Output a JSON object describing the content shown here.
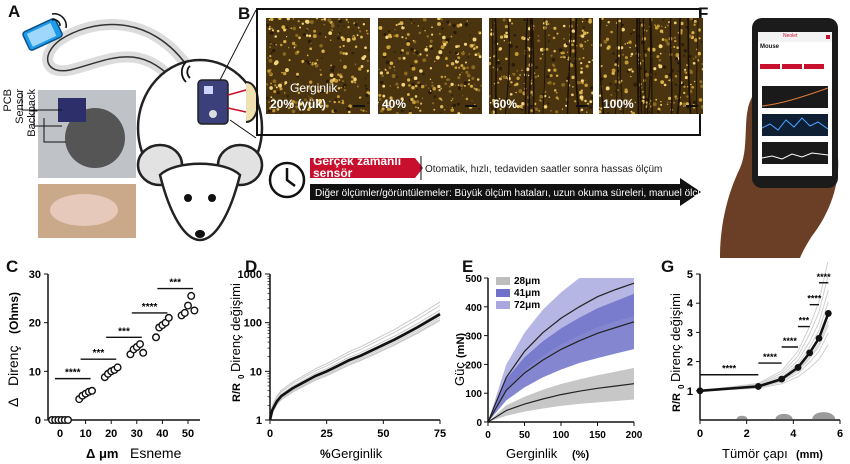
{
  "panels": {
    "A": "A",
    "B": "B",
    "C": "C",
    "D": "D",
    "E": "E",
    "F": "F",
    "G": "G"
  },
  "panel_a": {
    "labels": [
      "PCB",
      "Sensor",
      "Backpack"
    ]
  },
  "panel_b": {
    "strain_word": "Gerginlik",
    "images": [
      "20% (yük)",
      "40%",
      "60%",
      "100%"
    ]
  },
  "middle": {
    "realtime_label": "Gerçek zamanlı sensör",
    "realtime_desc": "Otomatik, hızlı, tedaviden saatler sonra hassas ölçüm",
    "other_desc": "Diğer ölçümler/görüntülemeler: Büyük ölçüm hataları, uzun okuma süreleri, manuel ölçüm"
  },
  "phone": {
    "brand": "Neolet",
    "title": "Mouse",
    "tabs": [
      "",
      "",
      ""
    ]
  },
  "colors": {
    "red": "#c8102e",
    "series_28": "#bdbdbd",
    "series_41": "#6f72c8",
    "series_72": "#a9a9e0",
    "dark": "#111111"
  },
  "chart_data": [
    {
      "panel": "C",
      "type": "scatter",
      "title": "",
      "ylabel_main": "Direnç",
      "ylabel_prefix": "Δ",
      "ylabel_unit": "(Ohms)",
      "xlabel_main": "Esneme",
      "xlabel_prefix": "Δ μm",
      "x_ticks": [
        0,
        10,
        20,
        30,
        40,
        50
      ],
      "y_ticks": [
        0,
        10,
        20,
        30
      ],
      "ylim": [
        0,
        30
      ],
      "groups": [
        {
          "x": 0,
          "values": [
            0,
            0,
            0,
            0,
            0,
            0
          ]
        },
        {
          "x": 10,
          "values": [
            4.3,
            5.0,
            5.4,
            5.8,
            6.0
          ]
        },
        {
          "x": 20,
          "values": [
            8.8,
            9.5,
            10.0,
            10.3,
            10.8
          ]
        },
        {
          "x": 30,
          "values": [
            13.5,
            14.5,
            15.0,
            15.6,
            13.8
          ]
        },
        {
          "x": 40,
          "values": [
            17.0,
            19.0,
            19.5,
            20.0,
            21.0
          ]
        },
        {
          "x": 50,
          "values": [
            21.5,
            22.0,
            23.5,
            25.5,
            22.5
          ]
        }
      ],
      "significance": [
        {
          "x_from": 0,
          "x_to": 10,
          "y": 8.5,
          "label": "****"
        },
        {
          "x_from": 10,
          "x_to": 20,
          "y": 12.5,
          "label": "***"
        },
        {
          "x_from": 20,
          "x_to": 30,
          "y": 17.0,
          "label": "***"
        },
        {
          "x_from": 30,
          "x_to": 40,
          "y": 22.0,
          "label": "****"
        },
        {
          "x_from": 40,
          "x_to": 50,
          "y": 27.0,
          "label": "***"
        }
      ]
    },
    {
      "panel": "D",
      "type": "line",
      "ylabel_main": "Direnç değişimi",
      "ylabel_prefix": "R/R",
      "ylabel_sub": "0",
      "xlabel_main": "Gerginlik",
      "xlabel_prefix": "%",
      "x_ticks": [
        0,
        25,
        50,
        75
      ],
      "y_ticks": [
        "1",
        "10",
        "100",
        "1000"
      ],
      "y_scale": "log",
      "xlim": [
        0,
        75
      ],
      "ylim": [
        1,
        1000
      ],
      "mean": {
        "x": [
          0,
          1,
          3,
          5,
          10,
          15,
          20,
          25,
          30,
          35,
          40,
          45,
          50,
          55,
          60,
          65,
          70,
          75
        ],
        "y": [
          1,
          1.6,
          2.4,
          3.1,
          4.5,
          6,
          8,
          10,
          13,
          17,
          21,
          27,
          35,
          45,
          60,
          80,
          110,
          150
        ]
      },
      "spread": [
        0.8,
        1.25,
        0.65,
        1.55,
        0.9,
        1.1,
        1.8,
        0.7
      ]
    },
    {
      "panel": "E",
      "type": "line",
      "ylabel_main": "Güç",
      "ylabel_unit": "(mN)",
      "xlabel_main": "Gerginlik",
      "xlabel_unit": "(%)",
      "x_ticks": [
        0,
        50,
        100,
        150,
        200
      ],
      "y_ticks": [
        0,
        100,
        200,
        300,
        400,
        500
      ],
      "xlim": [
        0,
        200
      ],
      "ylim": [
        0,
        500
      ],
      "legend_position": "top-left",
      "series": [
        {
          "name": "28μm",
          "color_key": "series_28",
          "x": [
            0,
            25,
            50,
            75,
            100,
            125,
            150,
            175,
            200
          ],
          "mean": [
            0,
            40,
            62,
            80,
            95,
            107,
            117,
            125,
            133
          ],
          "lower": [
            0,
            22,
            36,
            47,
            56,
            63,
            68,
            73,
            78
          ],
          "upper": [
            0,
            58,
            88,
            112,
            132,
            148,
            162,
            175,
            188
          ]
        },
        {
          "name": "41μm",
          "color_key": "series_41",
          "x": [
            0,
            25,
            50,
            75,
            100,
            125,
            150,
            175,
            200
          ],
          "mean": [
            0,
            110,
            170,
            215,
            252,
            282,
            308,
            328,
            348
          ],
          "lower": [
            0,
            75,
            120,
            155,
            182,
            205,
            222,
            238,
            253
          ],
          "upper": [
            0,
            150,
            225,
            280,
            325,
            362,
            395,
            420,
            445
          ]
        },
        {
          "name": "72μm",
          "color_key": "series_72",
          "x": [
            0,
            25,
            50,
            75,
            100,
            125,
            150,
            175,
            200
          ],
          "mean": [
            0,
            155,
            245,
            310,
            360,
            400,
            435,
            460,
            482
          ],
          "lower": [
            0,
            110,
            180,
            230,
            270,
            300,
            328,
            350,
            368
          ],
          "upper": [
            0,
            200,
            310,
            390,
            450,
            500,
            500,
            500,
            500
          ]
        }
      ]
    },
    {
      "panel": "G",
      "type": "line",
      "ylabel_main": "Direnç değişimi",
      "ylabel_prefix": "R/R",
      "ylabel_sub": "0",
      "xlabel_main": "Tümör çapı",
      "xlabel_unit": "(mm)",
      "x_ticks": [
        0,
        2,
        4,
        6
      ],
      "y_ticks": [
        1,
        2,
        3,
        4,
        5
      ],
      "xlim": [
        0,
        6
      ],
      "ylim": [
        0,
        5
      ],
      "mean": {
        "x": [
          0,
          2.5,
          3.5,
          4.2,
          4.7,
          5.1,
          5.5
        ],
        "y": [
          1.0,
          1.15,
          1.4,
          1.8,
          2.3,
          2.8,
          3.65
        ]
      },
      "spread": [
        0.75,
        1.3,
        0.6,
        1.5,
        0.9,
        1.15,
        1.7,
        0.85
      ],
      "significance": [
        {
          "x_from": 0,
          "x_to": 2.5,
          "y": 1.55,
          "label": "****"
        },
        {
          "x_from": 2.5,
          "x_to": 3.5,
          "y": 1.95,
          "label": "****"
        },
        {
          "x_from": 3.5,
          "x_to": 4.2,
          "y": 2.5,
          "label": "****"
        },
        {
          "x_from": 4.2,
          "x_to": 4.7,
          "y": 3.2,
          "label": "***"
        },
        {
          "x_from": 4.7,
          "x_to": 5.1,
          "y": 3.95,
          "label": "****"
        },
        {
          "x_from": 5.1,
          "x_to": 5.5,
          "y": 4.7,
          "label": "****"
        }
      ],
      "tumors": [
        {
          "x": 1.8,
          "d": 0.55
        },
        {
          "x": 3.6,
          "d": 0.85
        },
        {
          "x": 5.3,
          "d": 1.15
        }
      ]
    }
  ]
}
